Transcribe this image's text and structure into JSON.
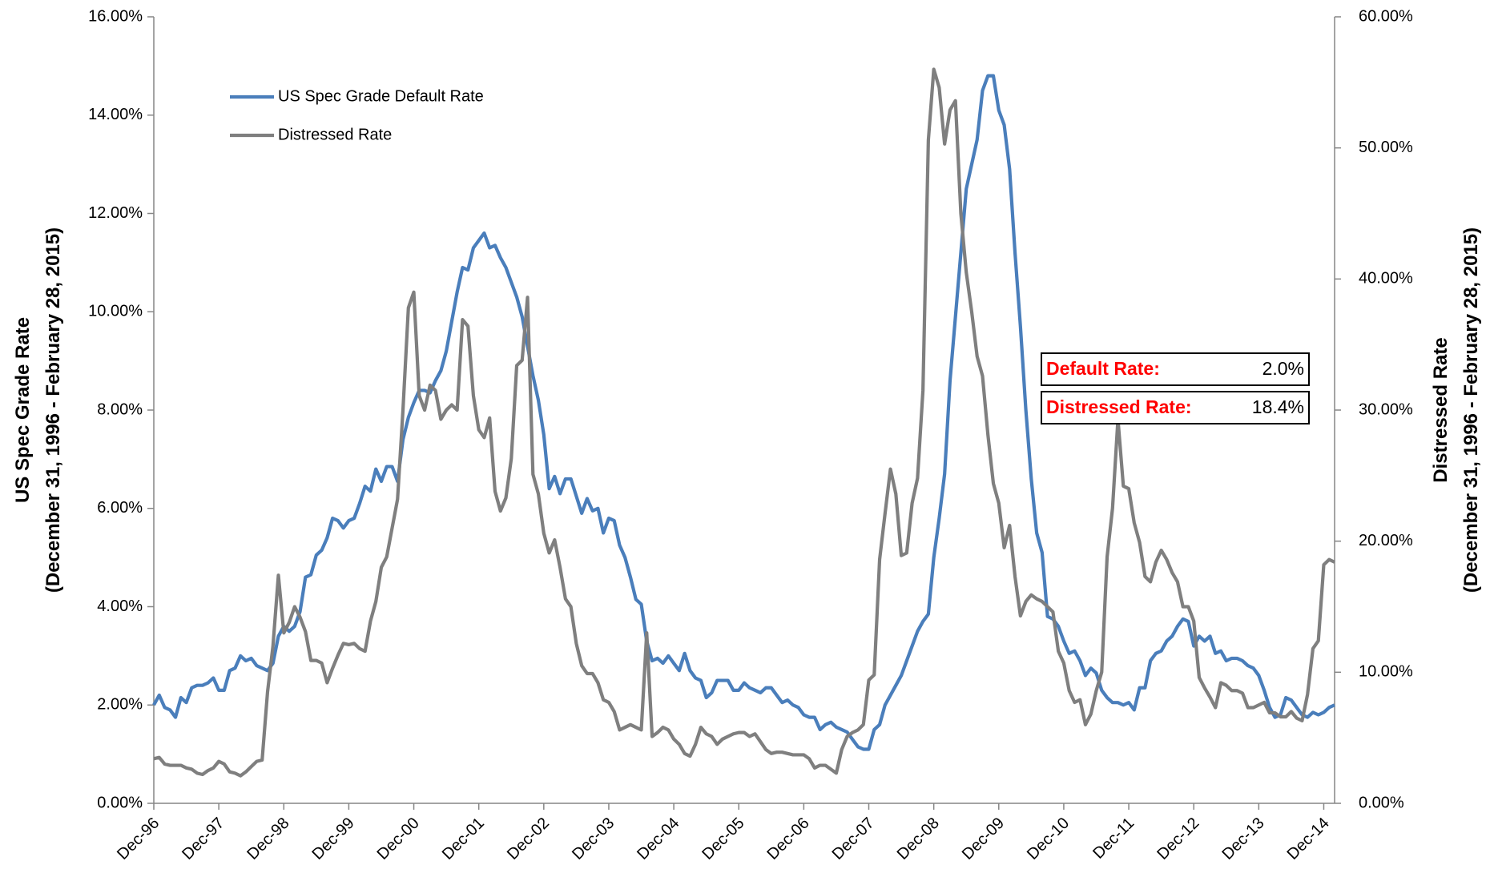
{
  "chart_data": {
    "type": "line",
    "ylabel": [
      "US Spec Grade Rate",
      "(December 31, 1996 - February 28, 2015)"
    ],
    "y2label": [
      "Distressed Rate",
      "(December 31, 1996 - February 28, 2015)"
    ],
    "categories": [
      "Dec-96",
      null,
      null,
      null,
      null,
      null,
      null,
      null,
      null,
      null,
      null,
      null,
      "Dec-97",
      null,
      null,
      null,
      null,
      null,
      null,
      null,
      null,
      null,
      null,
      null,
      "Dec-98",
      null,
      null,
      null,
      null,
      null,
      null,
      null,
      null,
      null,
      null,
      null,
      "Dec-99",
      null,
      null,
      null,
      null,
      null,
      null,
      null,
      null,
      null,
      null,
      null,
      "Dec-00",
      null,
      null,
      null,
      null,
      null,
      null,
      null,
      null,
      null,
      null,
      null,
      "Dec-01",
      null,
      null,
      null,
      null,
      null,
      null,
      null,
      null,
      null,
      null,
      null,
      "Dec-02",
      null,
      null,
      null,
      null,
      null,
      null,
      null,
      null,
      null,
      null,
      null,
      "Dec-03",
      null,
      null,
      null,
      null,
      null,
      null,
      null,
      null,
      null,
      null,
      null,
      "Dec-04",
      null,
      null,
      null,
      null,
      null,
      null,
      null,
      null,
      null,
      null,
      null,
      "Dec-05",
      null,
      null,
      null,
      null,
      null,
      null,
      null,
      null,
      null,
      null,
      null,
      "Dec-06",
      null,
      null,
      null,
      null,
      null,
      null,
      null,
      null,
      null,
      null,
      null,
      "Dec-07",
      null,
      null,
      null,
      null,
      null,
      null,
      null,
      null,
      null,
      null,
      null,
      "Dec-08",
      null,
      null,
      null,
      null,
      null,
      null,
      null,
      null,
      null,
      null,
      null,
      "Dec-09",
      null,
      null,
      null,
      null,
      null,
      null,
      null,
      null,
      null,
      null,
      null,
      "Dec-10",
      null,
      null,
      null,
      null,
      null,
      null,
      null,
      null,
      null,
      null,
      null,
      "Dec-11",
      null,
      null,
      null,
      null,
      null,
      null,
      null,
      null,
      null,
      null,
      null,
      "Dec-12",
      null,
      null,
      null,
      null,
      null,
      null,
      null,
      null,
      null,
      null,
      null,
      "Dec-13",
      null,
      null,
      null,
      null,
      null,
      null,
      null,
      null,
      null,
      null,
      null,
      "Dec-14",
      null,
      null
    ],
    "series": [
      {
        "name": "US Spec Grade Default Rate",
        "color": "#4a7ebb",
        "values": [
          2.0,
          2.2,
          1.95,
          1.9,
          1.75,
          2.15,
          2.05,
          2.35,
          2.4,
          2.4,
          2.45,
          2.55,
          2.3,
          2.3,
          2.7,
          2.75,
          3.0,
          2.9,
          2.95,
          2.8,
          2.75,
          2.7,
          2.85,
          3.4,
          3.6,
          3.5,
          3.6,
          3.9,
          4.6,
          4.65,
          5.05,
          5.15,
          5.4,
          5.8,
          5.75,
          5.6,
          5.75,
          5.8,
          6.1,
          6.45,
          6.35,
          6.8,
          6.55,
          6.85,
          6.85,
          6.55,
          7.4,
          7.85,
          8.15,
          8.4,
          8.4,
          8.35,
          8.6,
          8.8,
          9.2,
          9.8,
          10.4,
          10.9,
          10.85,
          11.3,
          11.45,
          11.6,
          11.3,
          11.35,
          11.1,
          10.9,
          10.6,
          10.3,
          9.9,
          9.3,
          8.7,
          8.2,
          7.5,
          6.4,
          6.65,
          6.3,
          6.6,
          6.6,
          6.25,
          5.9,
          6.2,
          5.95,
          6.0,
          5.5,
          5.8,
          5.75,
          5.25,
          5.0,
          4.6,
          4.15,
          4.05,
          3.3,
          2.9,
          2.95,
          2.85,
          3.0,
          2.85,
          2.7,
          3.05,
          2.7,
          2.55,
          2.5,
          2.15,
          2.25,
          2.5,
          2.5,
          2.5,
          2.3,
          2.3,
          2.45,
          2.35,
          2.3,
          2.25,
          2.35,
          2.35,
          2.2,
          2.05,
          2.1,
          2.0,
          1.95,
          1.8,
          1.75,
          1.75,
          1.5,
          1.6,
          1.65,
          1.55,
          1.5,
          1.45,
          1.3,
          1.15,
          1.1,
          1.1,
          1.5,
          1.6,
          2.0,
          2.2,
          2.4,
          2.6,
          2.9,
          3.2,
          3.5,
          3.7,
          3.85,
          5.0,
          5.8,
          6.7,
          8.6,
          9.9,
          11.2,
          12.5,
          13.0,
          13.5,
          14.5,
          14.8,
          14.8,
          14.1,
          13.8,
          12.9,
          11.2,
          9.7,
          8.0,
          6.6,
          5.5,
          5.1,
          3.8,
          3.75,
          3.6,
          3.3,
          3.05,
          3.1,
          2.9,
          2.6,
          2.75,
          2.65,
          2.3,
          2.15,
          2.05,
          2.05,
          2.0,
          2.05,
          1.9,
          2.35,
          2.35,
          2.9,
          3.05,
          3.1,
          3.3,
          3.4,
          3.6,
          3.75,
          3.7,
          3.2,
          3.4,
          3.3,
          3.4,
          3.05,
          3.1,
          2.9,
          2.95,
          2.95,
          2.9,
          2.8,
          2.75,
          2.6,
          2.3,
          1.95,
          1.75,
          1.8,
          2.15,
          2.1,
          1.95,
          1.8,
          1.75,
          1.85,
          1.8,
          1.85,
          1.95,
          2.0
        ]
      },
      {
        "name": "Distressed Rate",
        "color": "#7f7f7f",
        "axis": "y2",
        "values": [
          3.4,
          3.5,
          3.0,
          2.9,
          2.9,
          2.9,
          2.7,
          2.6,
          2.3,
          2.2,
          2.5,
          2.7,
          3.2,
          3.0,
          2.4,
          2.3,
          2.1,
          2.4,
          2.8,
          3.2,
          3.3,
          8.5,
          12.0,
          17.4,
          13.0,
          13.8,
          15.0,
          14.2,
          13.1,
          10.9,
          10.9,
          10.7,
          9.2,
          10.3,
          11.3,
          12.2,
          12.1,
          12.2,
          11.8,
          11.6,
          13.9,
          15.4,
          18.0,
          18.8,
          21.0,
          23.2,
          30.0,
          37.8,
          39.0,
          31.1,
          30.0,
          31.9,
          31.5,
          29.3,
          30.0,
          30.4,
          30.0,
          36.9,
          36.4,
          31.1,
          28.5,
          27.9,
          29.4,
          23.8,
          22.3,
          23.3,
          26.3,
          33.4,
          33.8,
          38.6,
          25.1,
          23.6,
          20.6,
          19.1,
          20.1,
          18.0,
          15.6,
          15.0,
          12.2,
          10.5,
          9.9,
          9.9,
          9.2,
          7.9,
          7.7,
          7.0,
          5.6,
          5.8,
          6.0,
          5.8,
          5.6,
          13.0,
          5.1,
          5.4,
          5.8,
          5.6,
          4.9,
          4.5,
          3.8,
          3.6,
          4.5,
          5.8,
          5.3,
          5.1,
          4.5,
          4.9,
          5.1,
          5.3,
          5.4,
          5.4,
          5.1,
          5.3,
          4.7,
          4.1,
          3.8,
          3.9,
          3.9,
          3.8,
          3.7,
          3.7,
          3.7,
          3.4,
          2.7,
          2.9,
          2.9,
          2.6,
          2.3,
          4.1,
          5.1,
          5.4,
          5.6,
          6.0,
          9.4,
          9.8,
          18.6,
          22.1,
          25.5,
          23.6,
          18.9,
          19.1,
          22.9,
          24.8,
          31.5,
          50.6,
          56.0,
          54.6,
          50.3,
          52.9,
          53.6,
          45.0,
          40.5,
          37.5,
          34.1,
          32.6,
          28.1,
          24.4,
          22.9,
          19.5,
          21.2,
          17.3,
          14.3,
          15.4,
          15.9,
          15.6,
          15.4,
          15.0,
          14.6,
          11.6,
          10.7,
          8.6,
          7.7,
          7.9,
          6.0,
          6.8,
          8.6,
          10.0,
          18.8,
          22.5,
          29.3,
          24.2,
          24.0,
          21.4,
          19.9,
          17.3,
          16.9,
          18.4,
          19.3,
          18.6,
          17.6,
          16.9,
          15.0,
          15.0,
          13.9,
          9.6,
          8.8,
          8.1,
          7.3,
          9.2,
          9.0,
          8.6,
          8.6,
          8.4,
          7.3,
          7.3,
          7.5,
          7.7,
          6.9,
          6.9,
          6.6,
          6.6,
          7.0,
          6.5,
          6.3,
          8.3,
          11.8,
          12.4,
          18.2,
          18.6,
          18.4
        ]
      }
    ],
    "ylim": [
      0,
      16
    ],
    "yticks": [
      {
        "value": 0,
        "label": "0.00%"
      },
      {
        "value": 2,
        "label": "2.00%"
      },
      {
        "value": 4,
        "label": "4.00%"
      },
      {
        "value": 6,
        "label": "6.00%"
      },
      {
        "value": 8,
        "label": "8.00%"
      },
      {
        "value": 10,
        "label": "10.00%"
      },
      {
        "value": 12,
        "label": "12.00%"
      },
      {
        "value": 14,
        "label": "14.00%"
      },
      {
        "value": 16,
        "label": "16.00%"
      }
    ],
    "y2lim": [
      0,
      60
    ],
    "y2ticks": [
      {
        "value": 0,
        "label": "0.00%"
      },
      {
        "value": 10,
        "label": "10.00%"
      },
      {
        "value": 20,
        "label": "20.00%"
      },
      {
        "value": 30,
        "label": "30.00%"
      },
      {
        "value": 40,
        "label": "40.00%"
      },
      {
        "value": 50,
        "label": "50.00%"
      },
      {
        "value": 60,
        "label": "60.00%"
      }
    ],
    "grid": false,
    "legend": "upper left",
    "annotations": [
      {
        "text": "Default Rate:",
        "value": "2.0%"
      },
      {
        "text": "Distressed Rate:",
        "value": "18.4%"
      }
    ]
  }
}
